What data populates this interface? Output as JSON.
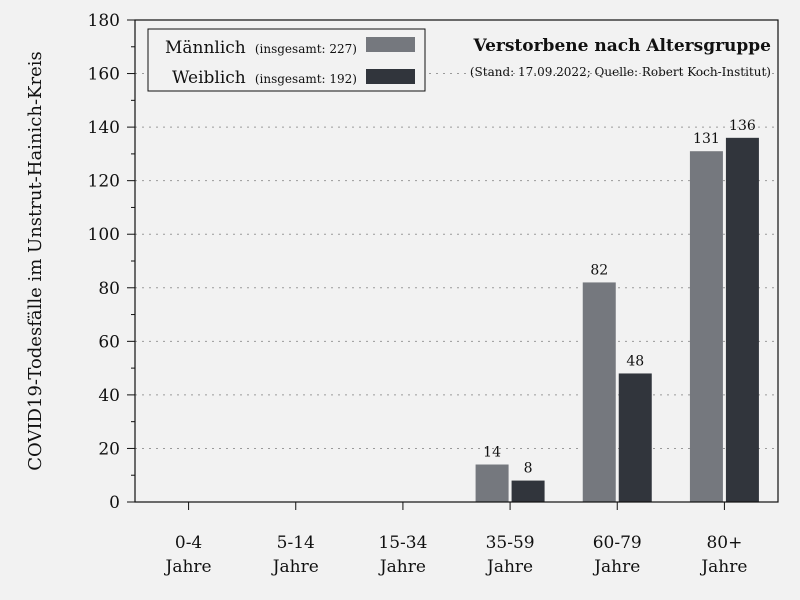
{
  "chart_data": {
    "type": "bar",
    "title": "Verstorbene nach Altersgruppe",
    "subtitle": "(Stand: 17.09.2022; Quelle: Robert Koch-Institut)",
    "ylabel": "COVID19-Todesfälle im Unstrut-Hainich-Kreis",
    "ylim": [
      0,
      180
    ],
    "yticks": [
      "0",
      "20",
      "40",
      "60",
      "80",
      "100",
      "120",
      "140",
      "160",
      "180"
    ],
    "grid": true,
    "legend_position": "top-left",
    "categories": [
      {
        "line1": "0-4",
        "line2": "Jahre"
      },
      {
        "line1": "5-14",
        "line2": "Jahre"
      },
      {
        "line1": "15-34",
        "line2": "Jahre"
      },
      {
        "line1": "35-59",
        "line2": "Jahre"
      },
      {
        "line1": "60-79",
        "line2": "Jahre"
      },
      {
        "line1": "80+",
        "line2": "Jahre"
      }
    ],
    "series": [
      {
        "name": "Männlich",
        "legend_note": "(insgesamt: 227)",
        "color": "#75787e",
        "values": [
          0,
          0,
          0,
          14,
          82,
          131
        ],
        "labels": [
          "",
          "",
          "",
          "14",
          "82",
          "131"
        ]
      },
      {
        "name": "Weiblich",
        "legend_note": "(insgesamt: 192)",
        "color": "#31353c",
        "values": [
          0,
          0,
          0,
          8,
          48,
          136
        ],
        "labels": [
          "",
          "",
          "",
          "8",
          "48",
          "136"
        ]
      }
    ]
  }
}
